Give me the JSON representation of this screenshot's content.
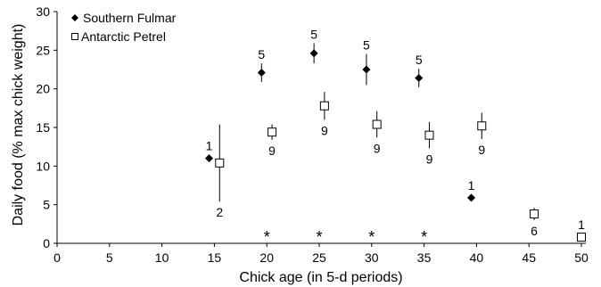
{
  "chart_data": {
    "type": "scatter",
    "xlabel": "Chick age (in 5-d periods)",
    "ylabel": "Daily food (% max chick weight)",
    "xlim": [
      0,
      50
    ],
    "ylim": [
      0,
      30
    ],
    "x_ticks": [
      0,
      5,
      10,
      15,
      20,
      25,
      30,
      35,
      40,
      45,
      50
    ],
    "y_ticks": [
      0,
      5,
      10,
      15,
      20,
      25,
      30
    ],
    "grid": false,
    "legend_position": "top-left",
    "series": [
      {
        "name": "Southern Fulmar",
        "marker": "filled-diamond",
        "color": "#000000",
        "points": [
          {
            "x": 14.5,
            "y": 11.0,
            "err": 0,
            "n": "1",
            "n_pos": "above"
          },
          {
            "x": 19.5,
            "y": 22.1,
            "err": 1.2,
            "n": "5",
            "n_pos": "above"
          },
          {
            "x": 24.5,
            "y": 24.6,
            "err": 1.3,
            "n": "5",
            "n_pos": "above"
          },
          {
            "x": 29.5,
            "y": 22.5,
            "err": 2.0,
            "n": "5",
            "n_pos": "above"
          },
          {
            "x": 34.5,
            "y": 21.4,
            "err": 1.2,
            "n": "5",
            "n_pos": "above"
          },
          {
            "x": 39.5,
            "y": 5.9,
            "err": 0,
            "n": "1",
            "n_pos": "above"
          }
        ]
      },
      {
        "name": "Antarctic Petrel",
        "marker": "open-square",
        "color": "#000000",
        "points": [
          {
            "x": 15.5,
            "y": 10.4,
            "err": 5.0,
            "n": "2",
            "n_pos": "below"
          },
          {
            "x": 20.5,
            "y": 14.4,
            "err": 1.0,
            "n": "9",
            "n_pos": "below"
          },
          {
            "x": 25.5,
            "y": 17.8,
            "err": 1.8,
            "n": "9",
            "n_pos": "below"
          },
          {
            "x": 30.5,
            "y": 15.4,
            "err": 1.7,
            "n": "9",
            "n_pos": "below"
          },
          {
            "x": 35.5,
            "y": 14.0,
            "err": 1.7,
            "n": "9",
            "n_pos": "below"
          },
          {
            "x": 40.5,
            "y": 15.2,
            "err": 1.7,
            "n": "9",
            "n_pos": "below"
          },
          {
            "x": 45.5,
            "y": 3.8,
            "err": 0.8,
            "n": "6",
            "n_pos": "below"
          },
          {
            "x": 50.0,
            "y": 0.8,
            "err": 0,
            "n": "1",
            "n_pos": "above"
          }
        ]
      }
    ],
    "significance_markers": [
      {
        "x": 20,
        "symbol": "*"
      },
      {
        "x": 25,
        "symbol": "*"
      },
      {
        "x": 30,
        "symbol": "*"
      },
      {
        "x": 35,
        "symbol": "*"
      }
    ]
  }
}
